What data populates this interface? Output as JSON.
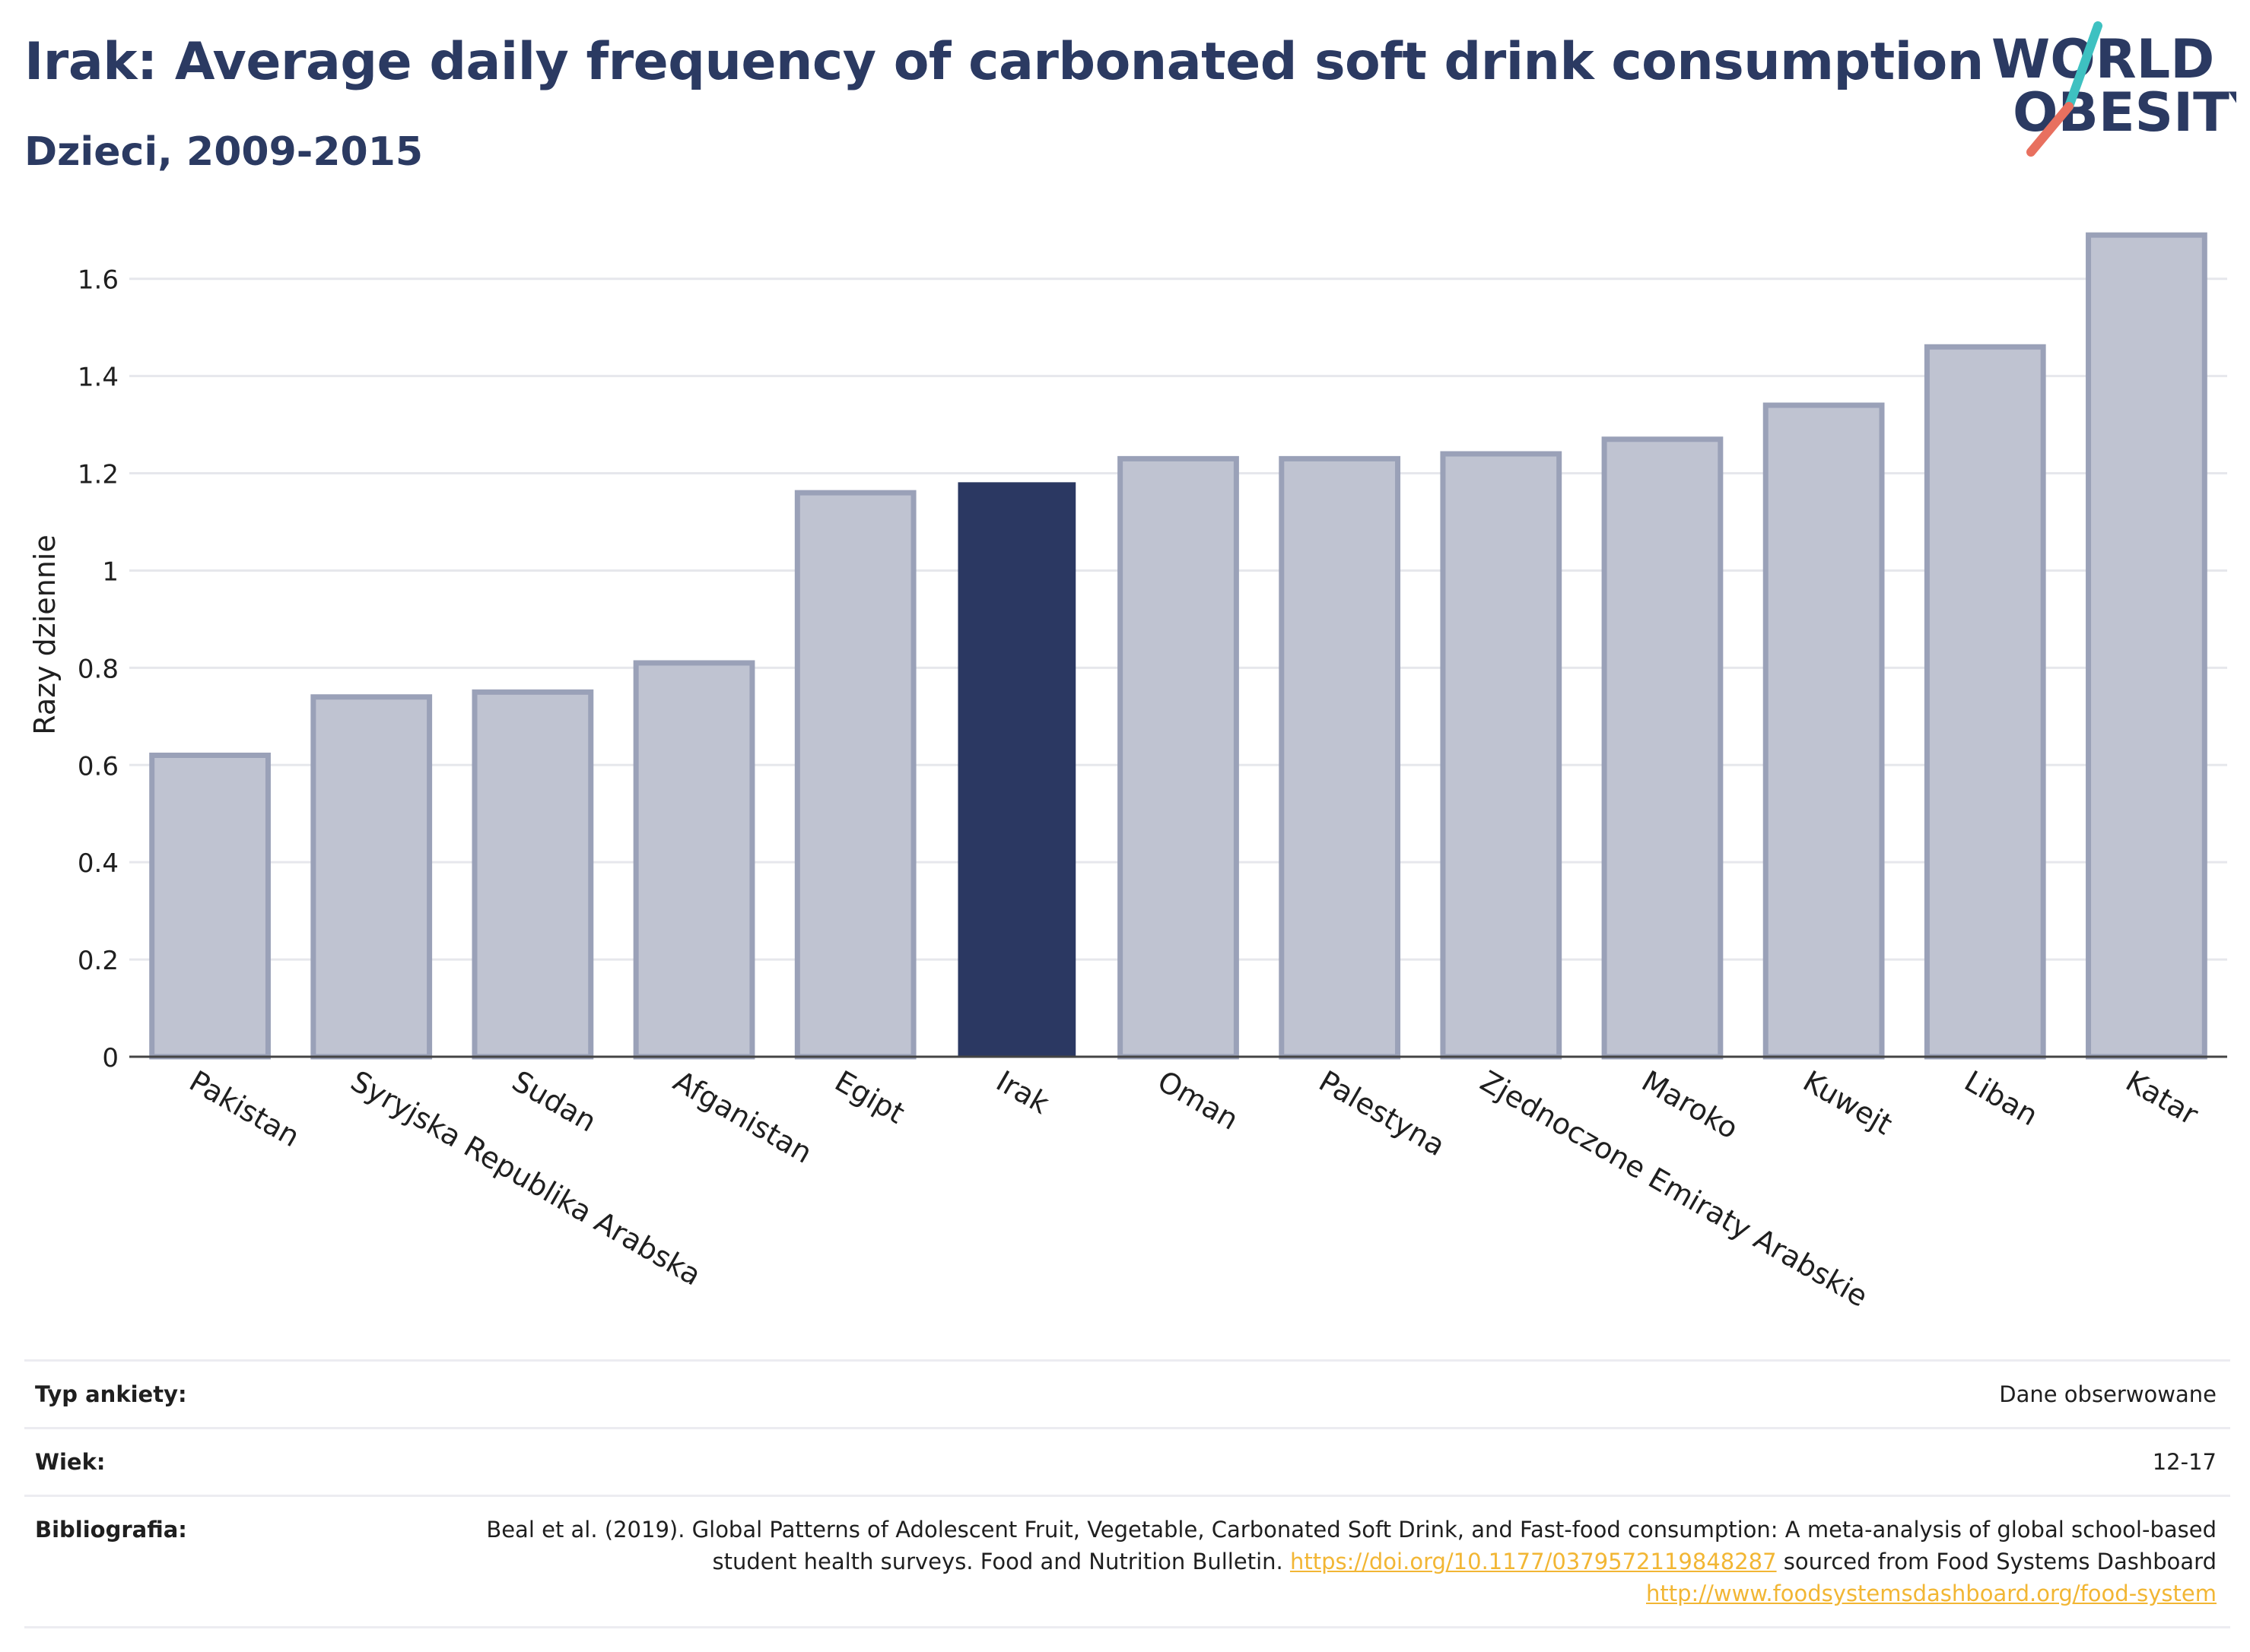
{
  "header": {
    "title": "Irak: Average daily frequency of carbonated soft drink consumption",
    "subtitle": "Dzieci, 2009-2015"
  },
  "logo": {
    "line1": "WORLD",
    "line2": "OBESITY",
    "accent_teal": "#3ec1c1",
    "accent_coral": "#e8705f"
  },
  "colors": {
    "bar": "#bfc3d1",
    "bar_stroke": "#9aa1b8",
    "highlight": "#2b3862",
    "text": "#2b3a62"
  },
  "chart_data": {
    "type": "bar",
    "ylabel": "Razy dziennie",
    "ylim": [
      0,
      1.72
    ],
    "yticks": [
      0,
      0.2,
      0.4,
      0.6,
      0.8,
      1,
      1.2,
      1.4,
      1.6
    ],
    "ytick_labels": [
      "0",
      "0.2",
      "0.4",
      "0.6",
      "0.8",
      "1",
      "1.2",
      "1.4",
      "1.6"
    ],
    "categories": [
      "Pakistan",
      "Syryjska Republika Arabska",
      "Sudan",
      "Afganistan",
      "Egipt",
      "Irak",
      "Oman",
      "Palestyna",
      "Zjednoczone Emiraty Arabskie",
      "Maroko",
      "Kuwejt",
      "Liban",
      "Katar"
    ],
    "values": [
      0.62,
      0.74,
      0.75,
      0.81,
      1.16,
      1.18,
      1.23,
      1.23,
      1.24,
      1.27,
      1.34,
      1.46,
      1.69
    ],
    "highlight": "Irak",
    "grid": true
  },
  "meta": {
    "survey_label": "Typ ankiety:",
    "survey_value": "Dane obserwowane",
    "age_label": "Wiek:",
    "age_value": "12-17",
    "biblio_label": "Bibliografia:",
    "biblio_text1": "Beal et al. (2019). Global Patterns of Adolescent Fruit, Vegetable, Carbonated Soft Drink, and Fast-food consumption: A meta-analysis of global school-based student health surveys. Food and Nutrition Bulletin.",
    "biblio_link1": "https://doi.org/10.1177/0379572119848287",
    "biblio_text2": "sourced from Food Systems Dashboard",
    "biblio_link2": "http://www.foodsystemsdashboard.org/food-system"
  }
}
